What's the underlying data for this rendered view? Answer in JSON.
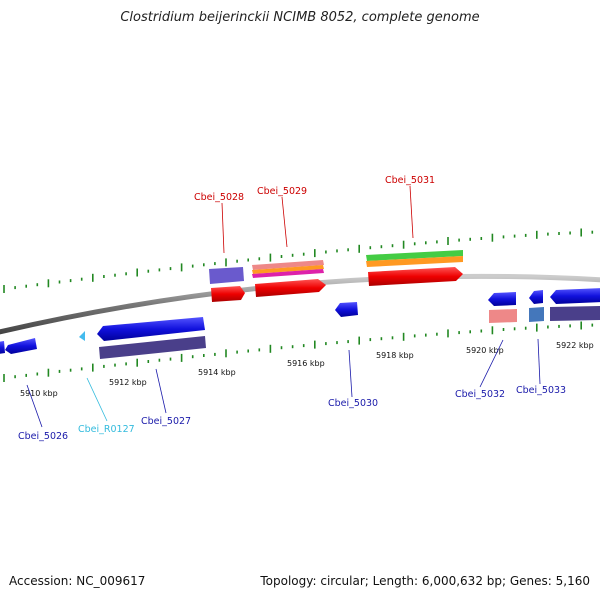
{
  "title": "Clostridium beijerinckii NCIMB 8052, complete genome",
  "footer": {
    "accession": "Accession: NC_009617",
    "summary": "Topology: circular; Length: 6,000,632 bp; Genes: 5,160"
  },
  "scale_labels": [
    "5910 kbp",
    "5912 kbp",
    "5914 kbp",
    "5916 kbp",
    "5918 kbp",
    "5920 kbp",
    "5922 kbp"
  ],
  "gene_labels": [
    {
      "id": "Cbei_5028",
      "strand": "forward",
      "color": "#cc0000"
    },
    {
      "id": "Cbei_5029",
      "strand": "forward",
      "color": "#cc0000"
    },
    {
      "id": "Cbei_5031",
      "strand": "forward",
      "color": "#cc0000"
    },
    {
      "id": "Cbei_5026",
      "strand": "reverse",
      "color": "#1a1aaa"
    },
    {
      "id": "Cbei_R0127",
      "strand": "reverse",
      "color": "#33bbdd"
    },
    {
      "id": "Cbei_5027",
      "strand": "reverse",
      "color": "#1a1aaa"
    },
    {
      "id": "Cbei_5030",
      "strand": "reverse",
      "color": "#1a1aaa"
    },
    {
      "id": "Cbei_5032",
      "strand": "reverse",
      "color": "#1a1aaa"
    },
    {
      "id": "Cbei_5033",
      "strand": "reverse",
      "color": "#1a1aaa"
    }
  ],
  "colors": {
    "forward_gene": "#ee1111",
    "reverse_gene": "#1515dd",
    "rna_gene": "#44bbee",
    "backbone": "#888888",
    "tick": "#228822",
    "cog_purple": "#5a4e9a",
    "cog_pink": "#ee8888",
    "cog_green": "#44cc44",
    "cog_orange": "#ff9922"
  }
}
